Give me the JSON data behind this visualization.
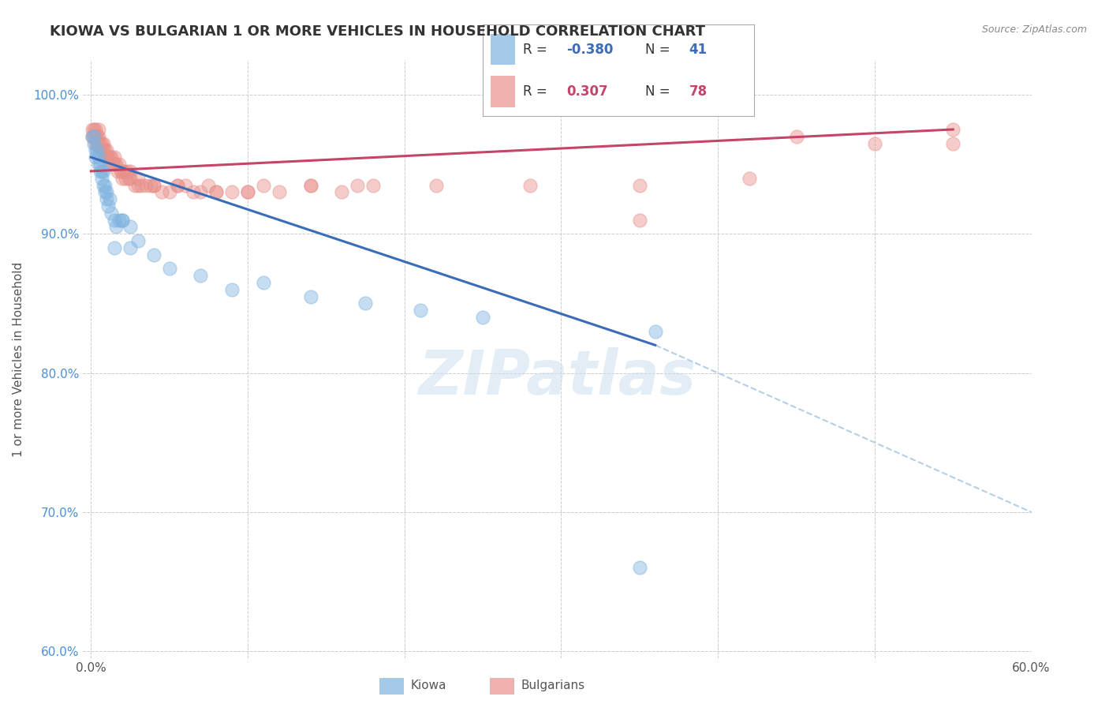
{
  "title": "KIOWA VS BULGARIAN 1 OR MORE VEHICLES IN HOUSEHOLD CORRELATION CHART",
  "source": "Source: ZipAtlas.com",
  "ylabel": "1 or more Vehicles in Household",
  "xlim": [
    -0.005,
    0.6
  ],
  "ylim": [
    0.595,
    1.025
  ],
  "xtick_positions": [
    0.0,
    0.1,
    0.2,
    0.3,
    0.4,
    0.5,
    0.6
  ],
  "xtick_labels": [
    "0.0%",
    "",
    "",
    "",
    "",
    "",
    "60.0%"
  ],
  "ytick_positions": [
    0.6,
    0.7,
    0.8,
    0.9,
    1.0
  ],
  "ytick_labels": [
    "60.0%",
    "70.0%",
    "80.0%",
    "90.0%",
    "100.0%"
  ],
  "kiowa_color": "#7fb3e0",
  "bulgarian_color": "#e8908a",
  "kiowa_line_color": "#3a6cba",
  "bulgarian_line_color": "#c44569",
  "trend_extension_color": "#b5cfe8",
  "legend_R_kiowa": "-0.380",
  "legend_N_kiowa": "41",
  "legend_R_bulgarian": "0.307",
  "legend_N_bulgarian": "78",
  "watermark": "ZIPatlas",
  "grid_color": "#cccccc",
  "background_color": "#ffffff",
  "kiowa_x": [
    0.001,
    0.002,
    0.002,
    0.003,
    0.003,
    0.004,
    0.005,
    0.005,
    0.006,
    0.006,
    0.007,
    0.007,
    0.008,
    0.008,
    0.009,
    0.009,
    0.01,
    0.01,
    0.011,
    0.012,
    0.013,
    0.015,
    0.016,
    0.018,
    0.02,
    0.02,
    0.025,
    0.03,
    0.04,
    0.05,
    0.07,
    0.09,
    0.11,
    0.14,
    0.175,
    0.21,
    0.25,
    0.015,
    0.025,
    0.36,
    0.35
  ],
  "kiowa_y": [
    0.97,
    0.97,
    0.965,
    0.96,
    0.955,
    0.96,
    0.955,
    0.95,
    0.945,
    0.95,
    0.945,
    0.94,
    0.945,
    0.935,
    0.935,
    0.93,
    0.93,
    0.925,
    0.92,
    0.925,
    0.915,
    0.91,
    0.905,
    0.91,
    0.91,
    0.91,
    0.905,
    0.895,
    0.885,
    0.875,
    0.87,
    0.86,
    0.865,
    0.855,
    0.85,
    0.845,
    0.84,
    0.89,
    0.89,
    0.83,
    0.66
  ],
  "bulgarian_x": [
    0.001,
    0.001,
    0.002,
    0.002,
    0.003,
    0.003,
    0.003,
    0.004,
    0.004,
    0.005,
    0.005,
    0.005,
    0.006,
    0.006,
    0.007,
    0.007,
    0.008,
    0.008,
    0.009,
    0.009,
    0.01,
    0.01,
    0.011,
    0.012,
    0.012,
    0.013,
    0.014,
    0.015,
    0.015,
    0.016,
    0.017,
    0.018,
    0.019,
    0.02,
    0.021,
    0.022,
    0.023,
    0.024,
    0.025,
    0.028,
    0.03,
    0.032,
    0.035,
    0.038,
    0.04,
    0.045,
    0.05,
    0.055,
    0.06,
    0.065,
    0.07,
    0.075,
    0.08,
    0.09,
    0.1,
    0.11,
    0.12,
    0.14,
    0.16,
    0.18,
    0.02,
    0.025,
    0.03,
    0.04,
    0.055,
    0.08,
    0.1,
    0.14,
    0.17,
    0.22,
    0.28,
    0.35,
    0.42,
    0.5,
    0.55,
    0.55,
    0.35,
    0.45
  ],
  "bulgarian_y": [
    0.975,
    0.97,
    0.975,
    0.97,
    0.975,
    0.965,
    0.97,
    0.965,
    0.97,
    0.965,
    0.97,
    0.975,
    0.965,
    0.96,
    0.96,
    0.965,
    0.96,
    0.965,
    0.955,
    0.96,
    0.96,
    0.955,
    0.955,
    0.955,
    0.95,
    0.955,
    0.95,
    0.955,
    0.95,
    0.95,
    0.945,
    0.95,
    0.945,
    0.945,
    0.945,
    0.94,
    0.945,
    0.94,
    0.945,
    0.935,
    0.94,
    0.935,
    0.935,
    0.935,
    0.935,
    0.93,
    0.93,
    0.935,
    0.935,
    0.93,
    0.93,
    0.935,
    0.93,
    0.93,
    0.93,
    0.935,
    0.93,
    0.935,
    0.93,
    0.935,
    0.94,
    0.94,
    0.935,
    0.935,
    0.935,
    0.93,
    0.93,
    0.935,
    0.935,
    0.935,
    0.935,
    0.935,
    0.94,
    0.965,
    0.965,
    0.975,
    0.91,
    0.97
  ],
  "kiowa_trend_x0": 0.0,
  "kiowa_trend_y0": 0.955,
  "kiowa_trend_x1": 0.36,
  "kiowa_trend_y1": 0.82,
  "kiowa_trend_ext_x1": 0.6,
  "kiowa_trend_ext_y1": 0.7,
  "bulgarian_trend_x0": 0.0,
  "bulgarian_trend_y0": 0.945,
  "bulgarian_trend_x1": 0.55,
  "bulgarian_trend_y1": 0.975
}
